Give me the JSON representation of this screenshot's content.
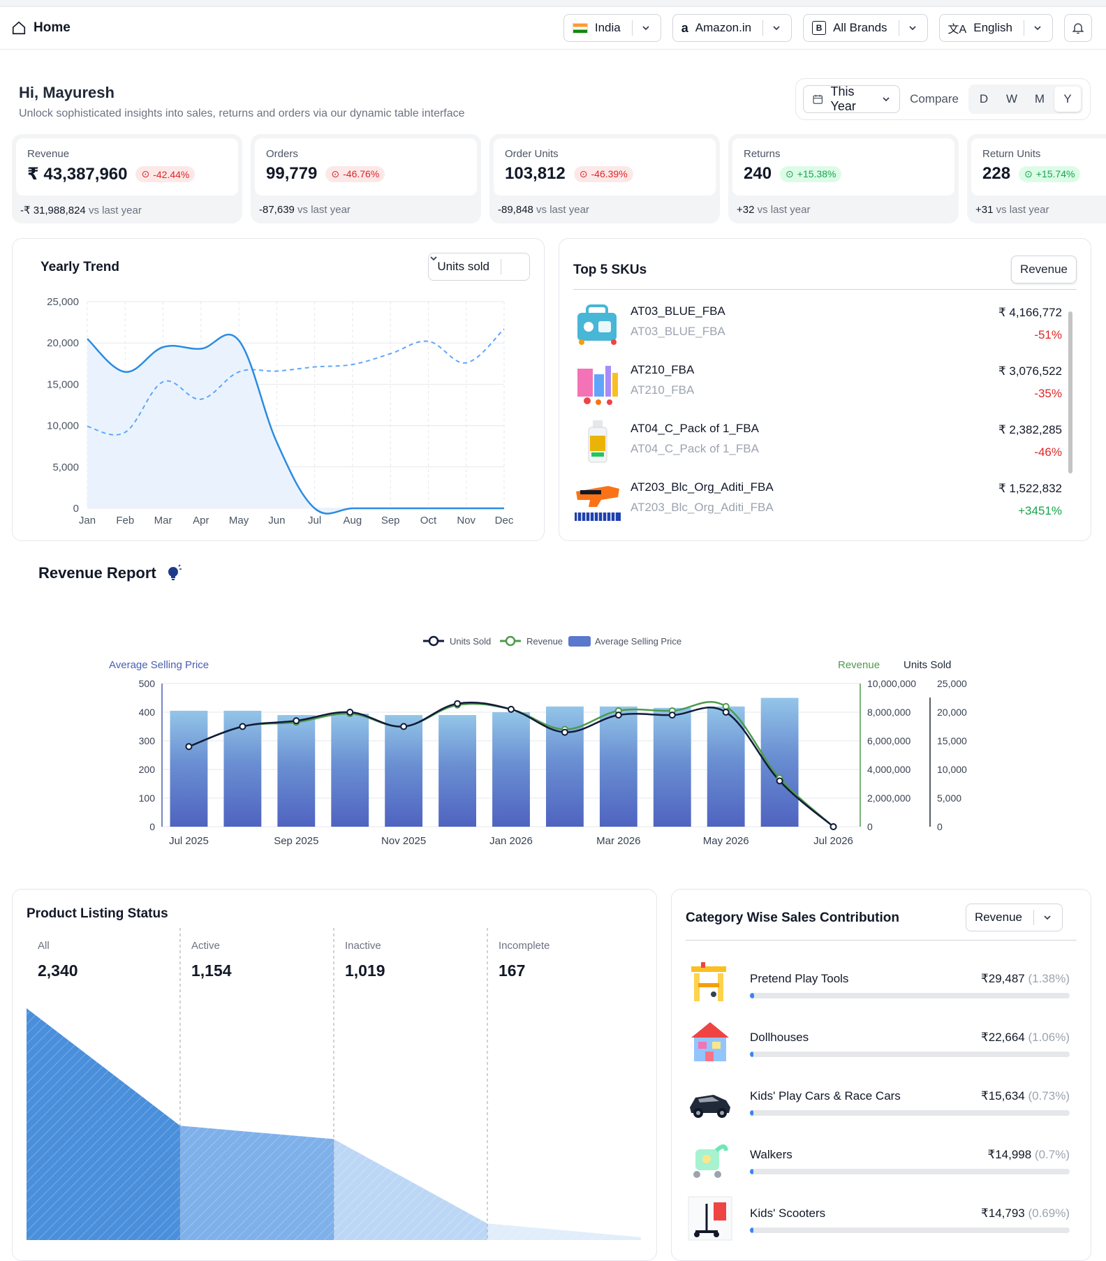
{
  "header": {
    "home_label": "Home",
    "selectors": [
      {
        "label": "India",
        "icon": "india-flag-icon"
      },
      {
        "label": "Amazon.in",
        "icon": "amazon-icon"
      },
      {
        "label": "All Brands",
        "icon": "brand-icon"
      },
      {
        "label": "English",
        "icon": "translate-icon"
      }
    ]
  },
  "greeting": {
    "title": "Hi, Mayuresh",
    "subtitle": "Unlock sophisticated insights into sales, returns and orders via our dynamic table interface"
  },
  "period": {
    "range_label": "This Year",
    "compare_label": "Compare",
    "granularity": [
      "D",
      "W",
      "M",
      "Y"
    ],
    "active": "Y"
  },
  "kpis": [
    {
      "label": "Revenue",
      "value": "₹ 43,387,960",
      "change": "-42.44%",
      "trend": "neg",
      "delta": "-₹ 31,988,824",
      "vs": "vs last year"
    },
    {
      "label": "Orders",
      "value": "99,779",
      "change": "-46.76%",
      "trend": "neg",
      "delta": "-87,639",
      "vs": "vs last year"
    },
    {
      "label": "Order Units",
      "value": "103,812",
      "change": "-46.39%",
      "trend": "neg",
      "delta": "-89,848",
      "vs": "vs last year"
    },
    {
      "label": "Returns",
      "value": "240",
      "change": "+15.38%",
      "trend": "pos",
      "delta": "+32",
      "vs": "vs last year"
    },
    {
      "label": "Return Units",
      "value": "228",
      "change": "+15.74%",
      "trend": "pos",
      "delta": "+31",
      "vs": "vs last year"
    }
  ],
  "yearly_trend": {
    "title": "Yearly Trend",
    "metric_label": "Units sold"
  },
  "top_skus": {
    "title": "Top 5 SKUs",
    "metric_label": "Revenue",
    "items": [
      {
        "name": "AT03_BLUE_FBA",
        "sub": "AT03_BLUE_FBA",
        "amount": "₹ 4,166,772",
        "change": "-51%",
        "trend": "neg"
      },
      {
        "name": "AT210_FBA",
        "sub": "AT210_FBA",
        "amount": "₹ 3,076,522",
        "change": "-35%",
        "trend": "neg"
      },
      {
        "name": "AT04_C_Pack of 1_FBA",
        "sub": "AT04_C_Pack of 1_FBA",
        "amount": "₹ 2,382,285",
        "change": "-46%",
        "trend": "neg"
      },
      {
        "name": "AT203_Blc_Org_Aditi_FBA",
        "sub": "AT203_Blc_Org_Aditi_FBA",
        "amount": "₹ 1,522,832",
        "change": "+3451%",
        "trend": "pos"
      }
    ]
  },
  "revenue_report": {
    "title": "Revenue Report"
  },
  "listing_status": {
    "title": "Product Listing Status",
    "columns": [
      {
        "label": "All",
        "value": "2,340"
      },
      {
        "label": "Active",
        "value": "1,154"
      },
      {
        "label": "Inactive",
        "value": "1,019"
      },
      {
        "label": "Incomplete",
        "value": "167"
      }
    ]
  },
  "category": {
    "title": "Category Wise Sales Contribution",
    "metric_label": "Revenue",
    "items": [
      {
        "name": "Pretend Play Tools",
        "amount": "₹29,487",
        "pct": "(1.38%)",
        "fraction": 0.0138
      },
      {
        "name": "Dollhouses",
        "amount": "₹22,664",
        "pct": "(1.06%)",
        "fraction": 0.0106
      },
      {
        "name": "Kids' Play Cars & Race Cars",
        "amount": "₹15,634",
        "pct": "(0.73%)",
        "fraction": 0.0073
      },
      {
        "name": "Walkers",
        "amount": "₹14,998",
        "pct": "(0.7%)",
        "fraction": 0.007
      },
      {
        "name": "Kids' Scooters",
        "amount": "₹14,793",
        "pct": "(0.69%)",
        "fraction": 0.0069
      }
    ]
  },
  "chart_data": [
    {
      "type": "line",
      "title": "Yearly Trend",
      "categories": [
        "Jan",
        "Feb",
        "Mar",
        "Apr",
        "May",
        "Jun",
        "Jul",
        "Aug",
        "Sep",
        "Oct",
        "Nov",
        "Dec"
      ],
      "ylim": [
        0,
        25000
      ],
      "yticks": [
        "0",
        "5,000",
        "10,000",
        "15,000",
        "20,000",
        "25,000"
      ],
      "series": [
        {
          "style": "solid",
          "values": [
            20500,
            16500,
            19500,
            19300,
            20300,
            8000,
            0,
            0,
            0,
            0,
            0,
            0
          ]
        },
        {
          "style": "dashed",
          "values": [
            9900,
            9200,
            15300,
            13200,
            16500,
            16600,
            17100,
            17400,
            18700,
            20200,
            17600,
            21700
          ]
        }
      ]
    },
    {
      "type": "bar",
      "categories": [
        "Jul 2025",
        "Aug 2025",
        "Sep 2025",
        "Oct 2025",
        "Nov 2025",
        "Dec 2025",
        "Jan 2026",
        "Feb 2026",
        "Mar 2026",
        "Apr 2026",
        "May 2026",
        "Jun 2026",
        "Jul 2026"
      ],
      "xtick_labels": [
        "Jul 2025",
        "Sep 2025",
        "Nov 2025",
        "Jan 2026",
        "Mar 2026",
        "May 2026",
        "Jul 2026"
      ],
      "legend": [
        "Units Sold",
        "Revenue",
        "Average Selling Price"
      ],
      "left_axis": {
        "label": "Average Selling Price",
        "ylim": [
          0,
          500
        ],
        "ticks": [
          "0",
          "100",
          "200",
          "300",
          "400",
          "500"
        ]
      },
      "revenue_axis": {
        "label": "Revenue",
        "ylim": [
          0,
          10000000
        ],
        "ticks": [
          "0",
          "2,000,000",
          "4,000,000",
          "6,000,000",
          "8,000,000",
          "10,000,000"
        ]
      },
      "units_axis": {
        "label": "Units Sold",
        "ylim": [
          0,
          25000
        ],
        "ticks": [
          "0",
          "5,000",
          "10,000",
          "15,000",
          "20,000",
          "25,000"
        ]
      },
      "asp": [
        405,
        405,
        390,
        395,
        390,
        390,
        400,
        420,
        420,
        415,
        420,
        450,
        null
      ],
      "revenue": [
        5600000,
        7000000,
        7300000,
        7900000,
        7000000,
        8500000,
        8200000,
        6800000,
        8100000,
        8100000,
        8400000,
        3400000,
        0
      ],
      "units_sold": [
        14000,
        17500,
        18500,
        20000,
        17500,
        21500,
        20500,
        16500,
        19500,
        19500,
        20000,
        8000,
        0
      ]
    },
    {
      "type": "area",
      "title": "Product Listing Status",
      "categories": [
        "All",
        "Active",
        "Inactive",
        "Incomplete"
      ],
      "values": [
        2340,
        1154,
        1019,
        167
      ]
    }
  ]
}
